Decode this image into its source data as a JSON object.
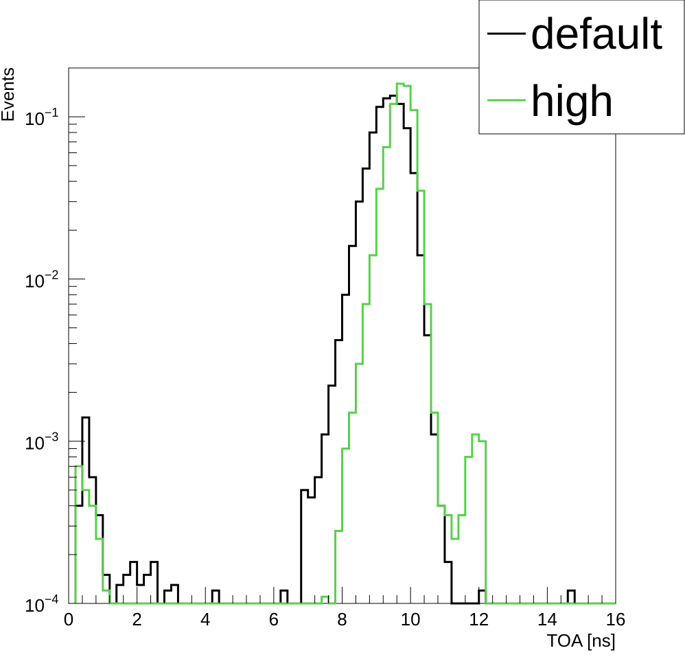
{
  "chart_data": {
    "type": "line",
    "plot_style": "step-histogram",
    "xlabel": "TOA [ns]",
    "ylabel": "Events",
    "xlim": [
      0,
      16
    ],
    "ylim": [
      0.0001,
      0.2
    ],
    "y_scale": "log",
    "x_ticks": [
      "0",
      "2",
      "4",
      "6",
      "8",
      "10",
      "12",
      "14",
      "16"
    ],
    "y_ticks": [
      {
        "base": "10",
        "exp": "−4"
      },
      {
        "base": "10",
        "exp": "−3"
      },
      {
        "base": "10",
        "exp": "−2"
      },
      {
        "base": "10",
        "exp": "−1"
      }
    ],
    "legend_position": "top-right",
    "grid": false,
    "bin_width": 0.2,
    "series": [
      {
        "name": "default",
        "color": "#000000",
        "x": [
          0.3,
          0.5,
          0.7,
          0.9,
          1.1,
          1.3,
          1.5,
          1.7,
          1.9,
          2.1,
          2.3,
          2.5,
          2.7,
          2.9,
          3.1,
          3.3,
          3.5,
          3.7,
          3.9,
          4.1,
          4.3,
          4.5,
          4.7,
          4.9,
          5.1,
          5.3,
          5.5,
          5.7,
          5.9,
          6.1,
          6.3,
          6.5,
          6.7,
          6.9,
          7.1,
          7.3,
          7.5,
          7.7,
          7.9,
          8.1,
          8.3,
          8.5,
          8.7,
          8.9,
          9.1,
          9.3,
          9.5,
          9.7,
          9.9,
          10.1,
          10.3,
          10.5,
          10.7,
          10.9,
          11.1,
          11.3,
          11.5,
          11.7,
          11.9,
          12.1,
          12.3,
          12.5,
          12.7,
          12.9,
          13.1,
          13.3,
          13.5,
          13.7,
          13.9,
          14.1,
          14.3,
          14.5,
          14.7,
          14.9,
          15.1,
          15.3,
          15.5,
          15.7,
          15.9
        ],
        "values": [
          0.0004,
          0.0014,
          0.0006,
          0.00035,
          0.00015,
          0.0001,
          0.00013,
          0.00015,
          0.00018,
          0.00013,
          0.00015,
          0.00018,
          0.0001,
          0.00012,
          0.00013,
          0.0001,
          0.0001,
          0.0001,
          0.0001,
          0.0001,
          0.00012,
          0.0001,
          0.0001,
          0.0001,
          0.0001,
          0.0001,
          0.0001,
          0.0001,
          0.0001,
          0.0001,
          0.00012,
          0.0001,
          0.0001,
          0.0005,
          0.00045,
          0.0006,
          0.0011,
          0.0022,
          0.0042,
          0.008,
          0.016,
          0.03,
          0.048,
          0.08,
          0.115,
          0.13,
          0.135,
          0.12,
          0.085,
          0.045,
          0.014,
          0.0045,
          0.0011,
          0.0004,
          0.00018,
          0.0001,
          0.0001,
          0.0001,
          0.0001,
          0.00012,
          0.0001,
          0.0001,
          0.0001,
          0.0001,
          0.0001,
          0.0001,
          0.0001,
          0.0001,
          0.0001,
          0.0001,
          0.0001,
          0.0001,
          0.00012,
          0.0001,
          0.0001,
          0.0001,
          0.0001,
          0.0001,
          0.0001
        ]
      },
      {
        "name": "high",
        "color": "#57d04a",
        "x": [
          0.3,
          0.5,
          0.7,
          0.9,
          1.1,
          1.3,
          1.5,
          1.7,
          1.9,
          2.1,
          2.3,
          2.5,
          2.7,
          2.9,
          3.1,
          3.3,
          3.5,
          3.7,
          3.9,
          4.1,
          4.3,
          4.5,
          4.7,
          4.9,
          5.1,
          5.3,
          5.5,
          5.7,
          5.9,
          6.1,
          6.3,
          6.5,
          6.7,
          6.9,
          7.1,
          7.3,
          7.5,
          7.7,
          7.9,
          8.1,
          8.3,
          8.5,
          8.7,
          8.9,
          9.1,
          9.3,
          9.5,
          9.7,
          9.9,
          10.1,
          10.3,
          10.5,
          10.7,
          10.9,
          11.1,
          11.3,
          11.5,
          11.7,
          11.9,
          12.1,
          12.3,
          12.5,
          12.7,
          12.9,
          13.1,
          13.3,
          13.5,
          13.7,
          13.9,
          14.1,
          14.3,
          14.5,
          14.7,
          14.9,
          15.1,
          15.3,
          15.5,
          15.7,
          15.9
        ],
        "values": [
          0.0007,
          0.0005,
          0.0004,
          0.00025,
          0.00012,
          0.0001,
          0.0001,
          0.0001,
          0.0001,
          0.0001,
          0.0001,
          0.0001,
          0.0001,
          0.0001,
          0.0001,
          0.0001,
          0.0001,
          0.0001,
          0.0001,
          0.0001,
          0.0001,
          0.0001,
          0.0001,
          0.0001,
          0.0001,
          0.0001,
          0.0001,
          0.0001,
          0.0001,
          0.0001,
          0.0001,
          0.0001,
          0.0001,
          0.0001,
          0.0001,
          0.0001,
          0.00011,
          0.0001,
          0.00028,
          0.0009,
          0.0015,
          0.003,
          0.007,
          0.014,
          0.036,
          0.065,
          0.12,
          0.16,
          0.155,
          0.11,
          0.035,
          0.007,
          0.0015,
          0.0004,
          0.00035,
          0.00025,
          0.00035,
          0.0008,
          0.0011,
          0.001,
          0.0001,
          0.0001,
          0.0001,
          0.0001,
          0.0001,
          0.0001,
          0.0001,
          0.0001,
          0.0001,
          0.0001,
          0.0001,
          0.0001,
          0.0001,
          0.0001,
          0.0001,
          0.0001,
          0.0001,
          0.0001,
          0.0001
        ]
      }
    ]
  }
}
